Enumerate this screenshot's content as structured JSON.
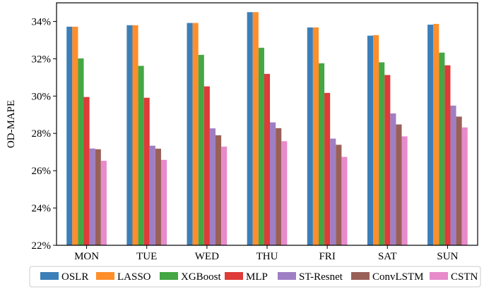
{
  "chart_data": {
    "type": "bar",
    "title": "",
    "xlabel": "",
    "ylabel": "OD-MAPE",
    "ylim": [
      22,
      35
    ],
    "yticks": [
      22,
      24,
      26,
      28,
      30,
      32,
      34
    ],
    "ytick_suffix": "%",
    "grid": false,
    "legend_position": "bottom",
    "categories": [
      "MON",
      "TUE",
      "WED",
      "THU",
      "FRI",
      "SAT",
      "SUN"
    ],
    "series": [
      {
        "name": "OSLR",
        "color": "#3c7fb8",
        "values": [
          33.72,
          33.8,
          33.92,
          34.5,
          33.68,
          33.24,
          33.83
        ]
      },
      {
        "name": "LASSO",
        "color": "#ff8e2b",
        "values": [
          33.72,
          33.8,
          33.92,
          34.5,
          33.68,
          33.27,
          33.87
        ]
      },
      {
        "name": "XGBoost",
        "color": "#44a744",
        "values": [
          32.02,
          31.62,
          32.21,
          32.59,
          31.76,
          31.81,
          32.33
        ]
      },
      {
        "name": "MLP",
        "color": "#de3b39",
        "values": [
          29.95,
          29.91,
          30.52,
          31.19,
          30.17,
          31.13,
          31.65
        ]
      },
      {
        "name": "ST-Resnet",
        "color": "#9f7fc4",
        "values": [
          27.19,
          27.34,
          28.27,
          28.59,
          27.72,
          29.07,
          29.49
        ]
      },
      {
        "name": "ConvLSTM",
        "color": "#996058",
        "values": [
          27.15,
          27.18,
          27.9,
          28.28,
          27.39,
          28.48,
          28.9
        ]
      },
      {
        "name": "CSTN",
        "color": "#e78bcb",
        "values": [
          26.53,
          26.58,
          27.29,
          27.58,
          26.74,
          27.84,
          28.32
        ]
      }
    ]
  }
}
